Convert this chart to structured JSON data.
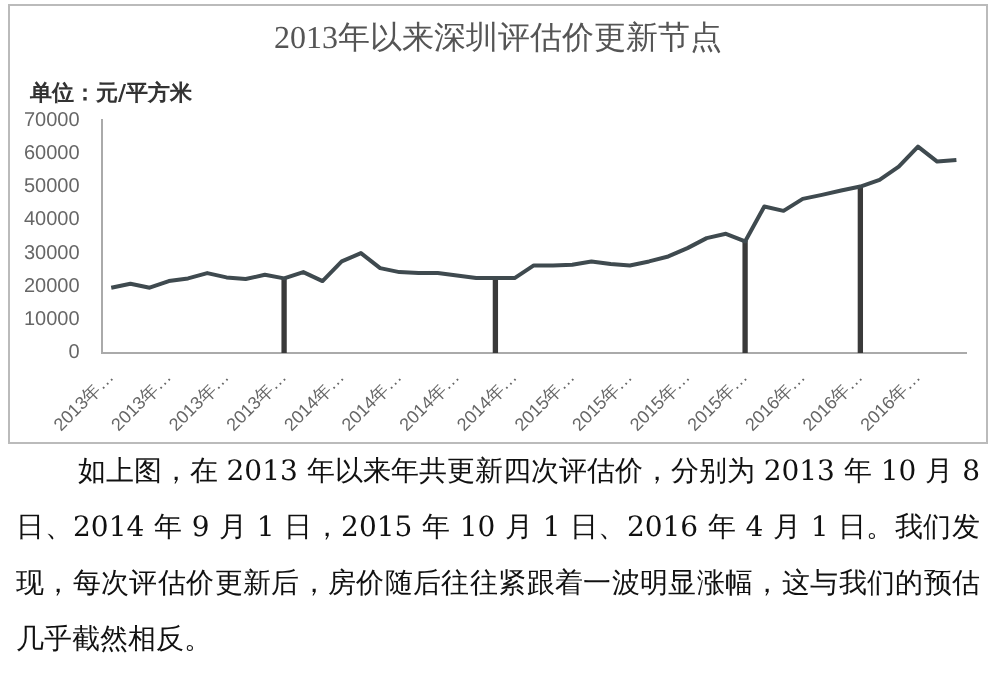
{
  "chart_data": {
    "type": "line",
    "title": "2013年以来深圳评估价更新节点",
    "ylabel": "单位：元/平方米",
    "categories": [
      "2013年…",
      null,
      null,
      "2013年…",
      null,
      null,
      "2013年…",
      null,
      null,
      "2013年…",
      null,
      null,
      "2014年…",
      null,
      null,
      "2014年…",
      null,
      null,
      "2014年…",
      null,
      null,
      "2014年…",
      null,
      null,
      "2015年…",
      null,
      null,
      "2015年…",
      null,
      null,
      "2015年…",
      null,
      null,
      "2015年…",
      null,
      null,
      "2016年…",
      null,
      null,
      "2016年…",
      null,
      null,
      "2016年…",
      null,
      null
    ],
    "series": [
      {
        "color": "#3f4a4f",
        "values": [
          19600,
          20800,
          19600,
          21600,
          22400,
          24000,
          22700,
          22200,
          23500,
          22400,
          24300,
          21600,
          27500,
          30000,
          25500,
          24300,
          24000,
          24000,
          23300,
          22500,
          22500,
          22500,
          26300,
          26300,
          26500,
          27500,
          26700,
          26300,
          27500,
          29000,
          31500,
          34500,
          35800,
          33500,
          44000,
          42700,
          46300,
          47500,
          48800,
          50000,
          52000,
          56000,
          62000,
          57500,
          58000
        ]
      },
      {
        "type": "bar",
        "color": "#3a3a3a",
        "values": [
          null,
          null,
          null,
          null,
          null,
          null,
          null,
          null,
          null,
          22400,
          null,
          null,
          null,
          null,
          null,
          null,
          null,
          null,
          null,
          null,
          22500,
          null,
          null,
          null,
          null,
          null,
          null,
          null,
          null,
          null,
          null,
          null,
          null,
          33500,
          null,
          null,
          null,
          null,
          null,
          50000,
          null,
          null,
          null,
          null,
          null
        ]
      }
    ],
    "ylim": [
      0,
      70000
    ],
    "yticks": [
      0,
      10000,
      20000,
      30000,
      40000,
      50000,
      60000,
      70000
    ],
    "grid": false,
    "legend": false,
    "marker": "none",
    "annotations": [
      "如上图，在 2013 年以来年共更新四次评估价，分别为 2013 年 10 月 8 日、2014 年 9 月 1 日，2015 年 10 月 1 日、2016 年 4 月 1 日。我们发现，每次评估价更新后，房价随后往往紧跟着一波明显涨幅，这与我们的预估几乎截然相反。"
    ]
  }
}
